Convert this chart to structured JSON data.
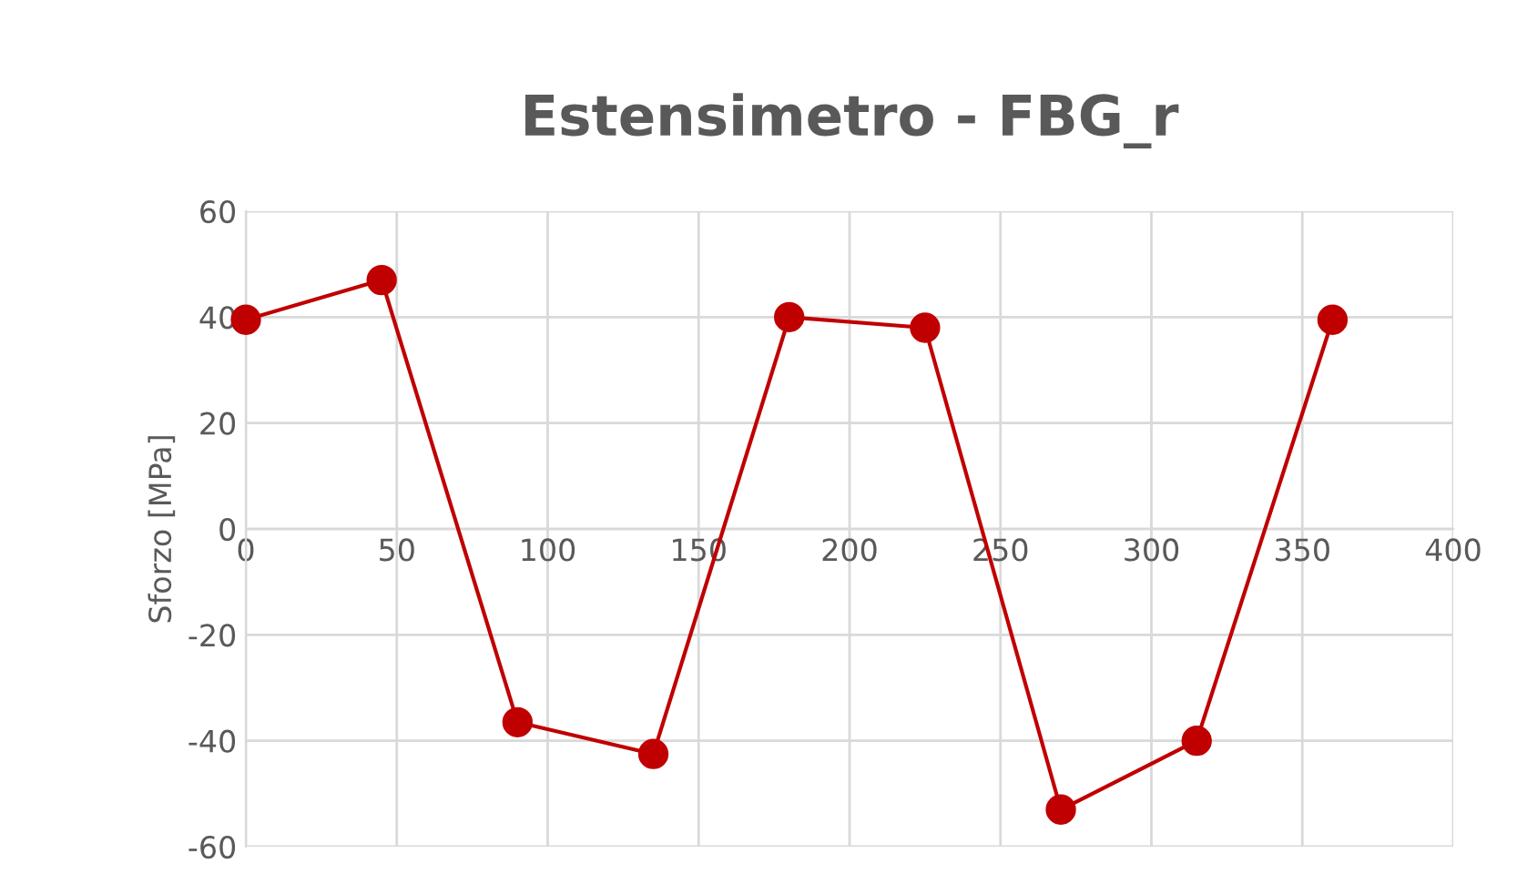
{
  "chart_data": {
    "type": "line",
    "title": "Estensimetro - FBG_r",
    "ylabel": "Sforzo [MPa]",
    "x": [
      0,
      45,
      90,
      135,
      180,
      225,
      270,
      315,
      360
    ],
    "series": [
      {
        "color": "#c00000",
        "values": [
          39.5,
          47,
          -36.5,
          -42.5,
          40,
          38,
          -53,
          -40,
          39.5
        ]
      }
    ],
    "xlim": [
      0,
      400
    ],
    "xticks": [
      0,
      50,
      100,
      150,
      200,
      250,
      300,
      350,
      400
    ],
    "ylim": [
      -60,
      60
    ],
    "yticks": [
      -60,
      -40,
      -20,
      0,
      20,
      40,
      60
    ],
    "grid": true,
    "marker": "circle",
    "line_style": "solid",
    "legend": false
  }
}
